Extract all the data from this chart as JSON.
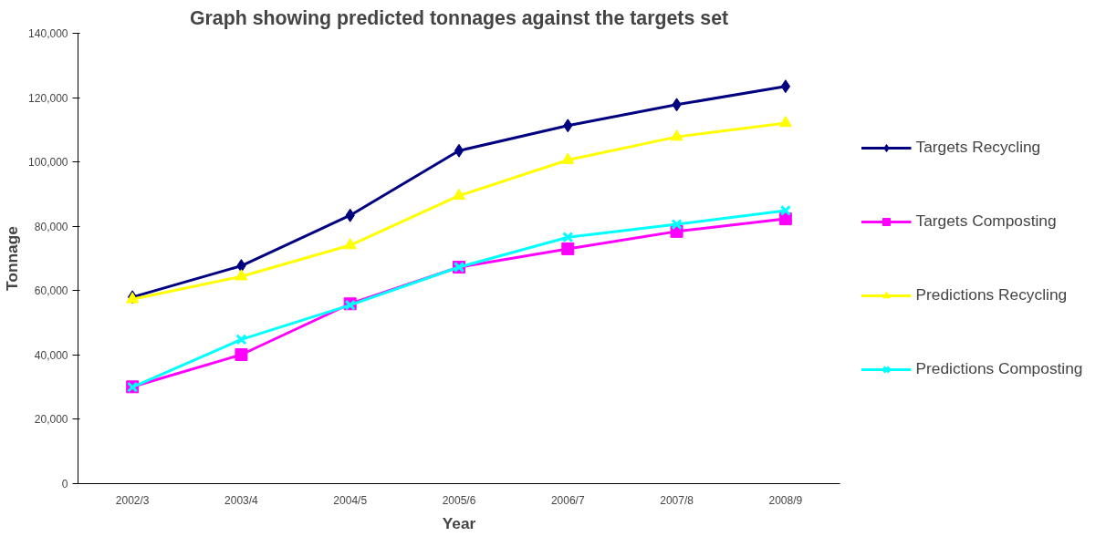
{
  "chart_data": {
    "type": "line",
    "title": "Graph showing predicted tonnages against the targets set",
    "xlabel": "Year",
    "ylabel": "Tonnage",
    "categories": [
      "2002/3",
      "2003/4",
      "2004/5",
      "2005/6",
      "2006/7",
      "2007/8",
      "2008/9"
    ],
    "series": [
      {
        "name": "Targets Recycling",
        "color": "#000080",
        "marker": "diamond",
        "values": [
          58000,
          67700,
          83400,
          103500,
          111300,
          117800,
          123500
        ]
      },
      {
        "name": "Targets Composting",
        "color": "#ff00ff",
        "marker": "square",
        "values": [
          30100,
          40100,
          55900,
          67300,
          73000,
          78400,
          82300
        ]
      },
      {
        "name": "Predictions Recycling",
        "color": "#ffff00",
        "marker": "triangle",
        "values": [
          57300,
          64400,
          74100,
          89500,
          100600,
          107800,
          112100
        ]
      },
      {
        "name": "Predictions Composting",
        "color": "#00ffff",
        "marker": "cross",
        "values": [
          30000,
          44800,
          55500,
          67300,
          76600,
          80600,
          84900
        ]
      }
    ],
    "ylim": [
      0,
      140000
    ],
    "yticks": [
      {
        "value": 0,
        "label": "0"
      },
      {
        "value": 20000,
        "label": "20,000"
      },
      {
        "value": 40000,
        "label": "40,000"
      },
      {
        "value": 60000,
        "label": "60,000"
      },
      {
        "value": 80000,
        "label": "80,000"
      },
      {
        "value": 100000,
        "label": "100,000"
      },
      {
        "value": 120000,
        "label": "120,000"
      },
      {
        "value": 140000,
        "label": "140,000"
      }
    ],
    "grid": false,
    "legend": "right",
    "line_style": "solid"
  }
}
